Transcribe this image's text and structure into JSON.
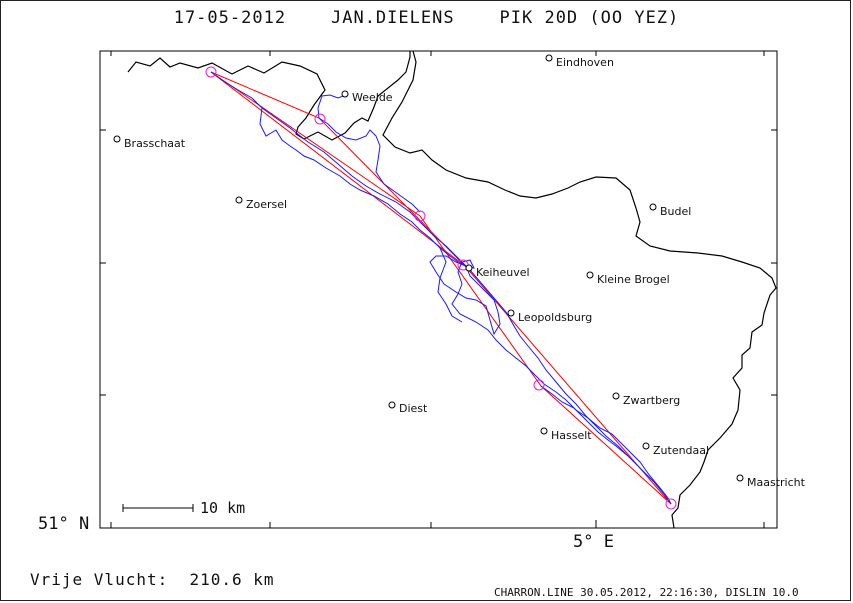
{
  "title": "17-05-2012    JAN.DIELENS    PIK 20D (OO YEZ)",
  "axis": {
    "lat_label": "51° N",
    "lon_label": "5° E"
  },
  "scale": {
    "label": "10 km"
  },
  "distance": {
    "label": "Vrije Vlucht:  210.6 km"
  },
  "footer": "CHARRON.LINE 30.05.2012, 22:16:30, DISLIN 10.0",
  "places": [
    {
      "name": "Eindhoven"
    },
    {
      "name": "Weelde"
    },
    {
      "name": "Brasschaat"
    },
    {
      "name": "Zoersel"
    },
    {
      "name": "Budel"
    },
    {
      "name": "Keiheuvel"
    },
    {
      "name": "Kleine Brogel"
    },
    {
      "name": "Leopoldsburg"
    },
    {
      "name": "Diest"
    },
    {
      "name": "Zwartberg"
    },
    {
      "name": "Hasselt"
    },
    {
      "name": "Zutendaal"
    },
    {
      "name": "Maastricht"
    }
  ],
  "colors": {
    "track": "#1a1aff",
    "route": "#ff0000",
    "turnpoint": "#e020e0",
    "border": "#000000"
  }
}
